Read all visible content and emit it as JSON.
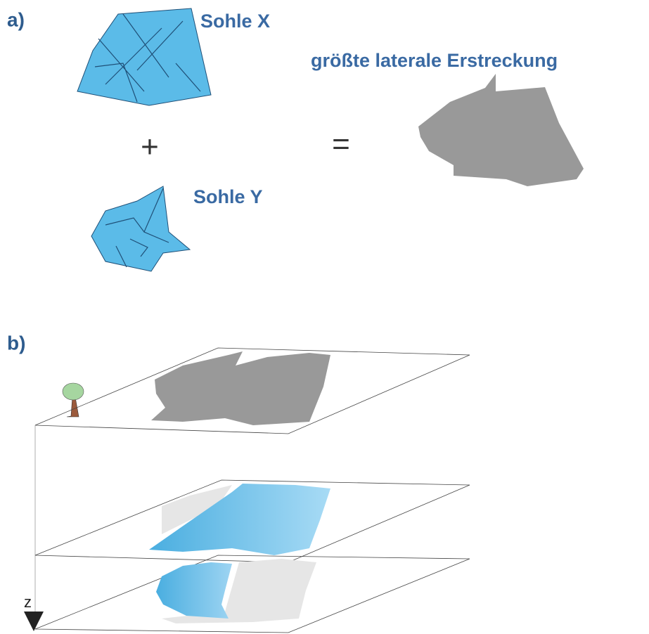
{
  "panel_a": {
    "label": "a)",
    "seam_x": "Sohle X",
    "plus": "+",
    "seam_y": "Sohle Y",
    "equals": "=",
    "result_title": "größte laterale Erstreckung"
  },
  "panel_b": {
    "label": "b)",
    "axis": "z"
  }
}
